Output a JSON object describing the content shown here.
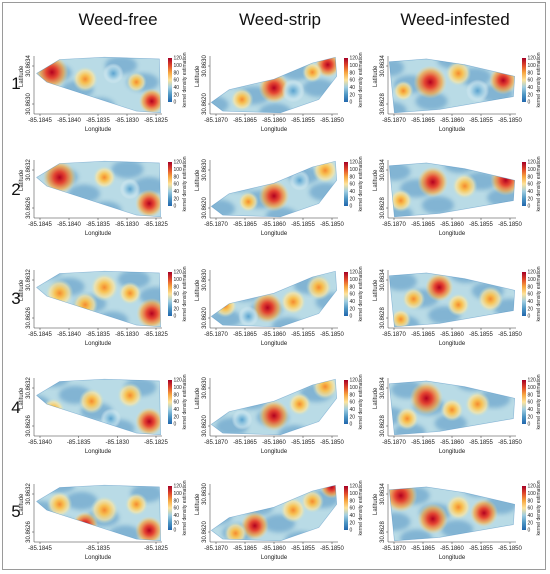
{
  "columns": [
    "Weed-free",
    "Weed-strip",
    "Weed-infested"
  ],
  "rows": [
    "1",
    "2",
    "3",
    "4",
    "5"
  ],
  "colorbar": {
    "label": "kernel density estimation",
    "colors": [
      "#2166ac",
      "#4d96c4",
      "#9fcde1",
      "#fde39b",
      "#f7a63f",
      "#e0472a",
      "#a50026"
    ]
  },
  "chart_data": [
    {
      "type": "heatmap",
      "column": "Weed-free",
      "row": "1",
      "xlabel": "Longitude",
      "ylabel": "Latitude",
      "x_ticks": [
        "-85.1845",
        "-85.1840",
        "-85.1835",
        "-85.1830",
        "-85.1825"
      ],
      "y_ticks": [
        "30.8630",
        "30.8634"
      ],
      "colorbar_ticks": [
        "0",
        "20",
        "40",
        "60",
        "80",
        "100",
        "120"
      ]
    },
    {
      "type": "heatmap",
      "column": "Weed-strip",
      "row": "1",
      "xlabel": "Longitude",
      "ylabel": "Latitude",
      "x_ticks": [
        "-85.1870",
        "-85.1865",
        "-85.1860",
        "-85.1855",
        "-85.1850"
      ],
      "y_ticks": [
        "30.8620",
        "30.8630"
      ],
      "colorbar_ticks": [
        "0",
        "20",
        "40",
        "60",
        "80",
        "100",
        "120"
      ]
    },
    {
      "type": "heatmap",
      "column": "Weed-infested",
      "row": "1",
      "xlabel": "Longitude",
      "ylabel": "Latitude",
      "x_ticks": [
        "-85.1870",
        "-85.1865",
        "-85.1860",
        "-85.1855",
        "-85.1850"
      ],
      "y_ticks": [
        "30.8628",
        "30.8634"
      ],
      "colorbar_ticks": [
        "0",
        "20",
        "40",
        "60",
        "80",
        "100",
        "120"
      ]
    },
    {
      "type": "heatmap",
      "column": "Weed-free",
      "row": "2",
      "xlabel": "Longitude",
      "ylabel": "Latitude",
      "x_ticks": [
        "-85.1845",
        "-85.1840",
        "-85.1835",
        "-85.1830",
        "-85.1825"
      ],
      "y_ticks": [
        "30.8626",
        "30.8632"
      ],
      "colorbar_ticks": [
        "0",
        "20",
        "40",
        "60",
        "80",
        "100",
        "120"
      ]
    },
    {
      "type": "heatmap",
      "column": "Weed-strip",
      "row": "2",
      "xlabel": "Longitude",
      "ylabel": "Latitude",
      "x_ticks": [
        "-85.1870",
        "-85.1865",
        "-85.1860",
        "-85.1855",
        "-85.1850"
      ],
      "y_ticks": [
        "30.8620",
        "30.8630"
      ],
      "colorbar_ticks": [
        "0",
        "20",
        "40",
        "60",
        "80",
        "100",
        "120"
      ]
    },
    {
      "type": "heatmap",
      "column": "Weed-infested",
      "row": "2",
      "xlabel": "Longitude",
      "ylabel": "Latitude",
      "x_ticks": [
        "-85.1870",
        "-85.1865",
        "-85.1860",
        "-85.1855",
        "-85.1850"
      ],
      "y_ticks": [
        "30.8628",
        "30.8634"
      ],
      "colorbar_ticks": [
        "0",
        "20",
        "40",
        "60",
        "80",
        "100",
        "120"
      ]
    },
    {
      "type": "heatmap",
      "column": "Weed-free",
      "row": "3",
      "xlabel": "Longitude",
      "ylabel": "Latitude",
      "x_ticks": [
        "-85.1845",
        "-85.1840",
        "-85.1835",
        "-85.1830",
        "-85.1825"
      ],
      "y_ticks": [
        "30.8626",
        "30.8632"
      ],
      "colorbar_ticks": [
        "0",
        "20",
        "40",
        "60",
        "80",
        "100",
        "120"
      ]
    },
    {
      "type": "heatmap",
      "column": "Weed-strip",
      "row": "3",
      "xlabel": "Longitude",
      "ylabel": "Latitude",
      "x_ticks": [
        "-85.1870",
        "-85.1865",
        "-85.1860",
        "-85.1855",
        "-85.1850"
      ],
      "y_ticks": [
        "30.8620",
        "30.8630"
      ],
      "colorbar_ticks": [
        "0",
        "20",
        "40",
        "60",
        "80",
        "100",
        "120"
      ]
    },
    {
      "type": "heatmap",
      "column": "Weed-infested",
      "row": "3",
      "xlabel": "Longitude",
      "ylabel": "Latitude",
      "x_ticks": [
        "-85.1870",
        "-85.1865",
        "-85.1860",
        "-85.1855",
        "-85.1850"
      ],
      "y_ticks": [
        "30.8628",
        "30.8634"
      ],
      "colorbar_ticks": [
        "0",
        "20",
        "40",
        "60",
        "80",
        "100",
        "120"
      ]
    },
    {
      "type": "heatmap",
      "column": "Weed-free",
      "row": "4",
      "xlabel": "Longitude",
      "ylabel": "Latitude",
      "x_ticks": [
        "-85.1840",
        "-85.1835",
        "-85.1830",
        "-85.1825"
      ],
      "y_ticks": [
        "30.8626",
        "30.8632"
      ],
      "colorbar_ticks": [
        "0",
        "20",
        "40",
        "60",
        "80",
        "100",
        "120"
      ]
    },
    {
      "type": "heatmap",
      "column": "Weed-strip",
      "row": "4",
      "xlabel": "Longitude",
      "ylabel": "Latitude",
      "x_ticks": [
        "-85.1870",
        "-85.1865",
        "-85.1860",
        "-85.1855",
        "-85.1850"
      ],
      "y_ticks": [
        "30.8620",
        "30.8630"
      ],
      "colorbar_ticks": [
        "0",
        "20",
        "40",
        "60",
        "80",
        "100",
        "120"
      ]
    },
    {
      "type": "heatmap",
      "column": "Weed-infested",
      "row": "4",
      "xlabel": "Longitude",
      "ylabel": "Latitude",
      "x_ticks": [
        "-85.1870",
        "-85.1865",
        "-85.1860",
        "-85.1855",
        "-85.1850"
      ],
      "y_ticks": [
        "30.8628",
        "30.8634"
      ],
      "colorbar_ticks": [
        "0",
        "20",
        "40",
        "60",
        "80",
        "100",
        "120"
      ]
    },
    {
      "type": "heatmap",
      "column": "Weed-free",
      "row": "5",
      "xlabel": "Longitude",
      "ylabel": "Latitude",
      "x_ticks": [
        "-85.1845",
        "-85.1835",
        "-85.1825"
      ],
      "y_ticks": [
        "30.8626",
        "30.8632"
      ],
      "colorbar_ticks": [
        "0",
        "20",
        "40",
        "60",
        "80",
        "100",
        "120"
      ]
    },
    {
      "type": "heatmap",
      "column": "Weed-strip",
      "row": "5",
      "xlabel": "Longitude",
      "ylabel": "Latitude",
      "x_ticks": [
        "-85.1870",
        "-85.1865",
        "-85.1860",
        "-85.1855",
        "-85.1850"
      ],
      "y_ticks": [
        "30.8620",
        "30.8630"
      ],
      "colorbar_ticks": [
        "0",
        "20",
        "40",
        "60",
        "80",
        "100",
        "120"
      ]
    },
    {
      "type": "heatmap",
      "column": "Weed-infested",
      "row": "5",
      "xlabel": "Longitude",
      "ylabel": "Latitude",
      "x_ticks": [
        "-85.1870",
        "-85.1865",
        "-85.1860",
        "-85.1855",
        "-85.1850"
      ],
      "y_ticks": [
        "30.8628",
        "30.8634"
      ],
      "colorbar_ticks": [
        "0",
        "20",
        "40",
        "60",
        "80",
        "100",
        "120"
      ]
    }
  ]
}
